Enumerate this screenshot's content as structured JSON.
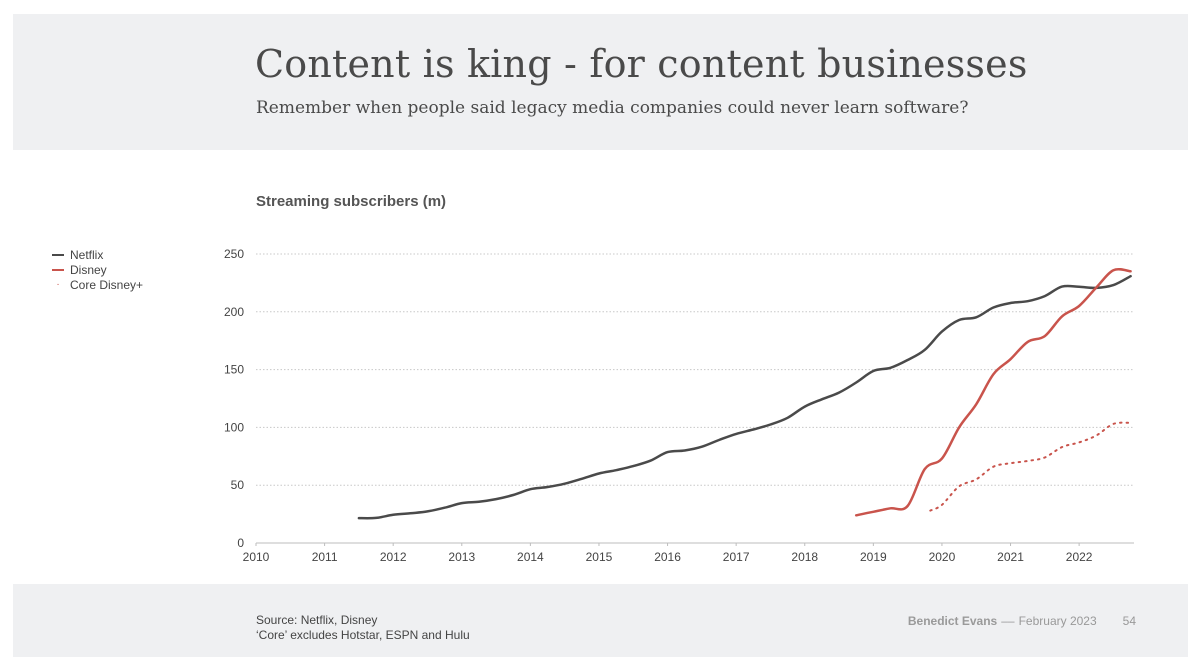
{
  "header": {
    "title": "Content is king - for content businesses",
    "subtitle": "Remember when people said legacy media companies could never learn software?"
  },
  "legend": {
    "items": [
      {
        "label": "Netflix",
        "color": "#4a4a4a",
        "style": "solid"
      },
      {
        "label": "Disney",
        "color": "#c9544c",
        "style": "solid"
      },
      {
        "label": "Core Disney+",
        "color": "#c9544c",
        "style": "dotted"
      }
    ]
  },
  "footer": {
    "source_line1": "Source: Netflix, Disney",
    "source_line2": "‘Core’ excludes Hotstar, ESPN and Hulu",
    "author": "Benedict Evans",
    "separator": "––",
    "date": "February 2023",
    "page_number": "54"
  },
  "chart_data": {
    "type": "line",
    "title": "Streaming subscribers (m)",
    "xlabel": "",
    "ylabel": "",
    "xlim": [
      2010,
      2022.8
    ],
    "ylim": [
      0,
      250
    ],
    "x_ticks": [
      2010,
      2011,
      2012,
      2013,
      2014,
      2015,
      2016,
      2017,
      2018,
      2019,
      2020,
      2021,
      2022
    ],
    "y_ticks": [
      0,
      50,
      100,
      150,
      200,
      250
    ],
    "grid": "horizontal dotted",
    "legend_position": "top-left",
    "series": [
      {
        "name": "Netflix",
        "color": "#4a4a4a",
        "style": "solid",
        "x": [
          2011.5,
          2011.75,
          2012.0,
          2012.25,
          2012.5,
          2012.75,
          2013.0,
          2013.25,
          2013.5,
          2013.75,
          2014.0,
          2014.25,
          2014.5,
          2014.75,
          2015.0,
          2015.25,
          2015.5,
          2015.75,
          2016.0,
          2016.25,
          2016.5,
          2016.75,
          2017.0,
          2017.25,
          2017.5,
          2017.75,
          2018.0,
          2018.25,
          2018.5,
          2018.75,
          2019.0,
          2019.25,
          2019.5,
          2019.75,
          2020.0,
          2020.25,
          2020.5,
          2020.75,
          2021.0,
          2021.25,
          2021.5,
          2021.75,
          2022.0,
          2022.25,
          2022.5,
          2022.75
        ],
        "values": [
          21.5,
          21.7,
          24.4,
          25.7,
          27.3,
          30.5,
          34.5,
          35.7,
          38.0,
          41.5,
          46.5,
          48.4,
          51.3,
          55.5,
          60.1,
          63.0,
          66.5,
          71.2,
          78.6,
          80.0,
          83.3,
          89.1,
          94.4,
          98.2,
          102.5,
          108.3,
          118.0,
          124.3,
          130.1,
          138.8,
          148.8,
          151.6,
          158.3,
          167.1,
          182.9,
          192.9,
          195.2,
          203.7,
          207.6,
          209.2,
          213.6,
          221.8,
          221.6,
          220.7,
          223.1,
          230.8
        ]
      },
      {
        "name": "Disney",
        "color": "#c9544c",
        "style": "solid",
        "x": [
          2018.75,
          2019.0,
          2019.25,
          2019.5,
          2019.75,
          2020.0,
          2020.25,
          2020.5,
          2020.75,
          2021.0,
          2021.25,
          2021.5,
          2021.75,
          2022.0,
          2022.25,
          2022.5,
          2022.75
        ],
        "values": [
          24,
          27,
          30,
          32,
          64,
          73,
          100,
          120,
          146,
          159,
          174,
          179,
          196,
          205,
          221,
          236,
          235
        ]
      },
      {
        "name": "Core Disney+",
        "color": "#c9544c",
        "style": "dotted",
        "x": [
          2019.83,
          2020.0,
          2020.25,
          2020.5,
          2020.75,
          2021.0,
          2021.25,
          2021.5,
          2021.75,
          2022.0,
          2022.25,
          2022.5,
          2022.75
        ],
        "values": [
          28,
          33,
          49,
          55,
          66,
          69,
          71,
          74,
          83,
          87,
          93,
          103,
          104
        ]
      }
    ]
  }
}
